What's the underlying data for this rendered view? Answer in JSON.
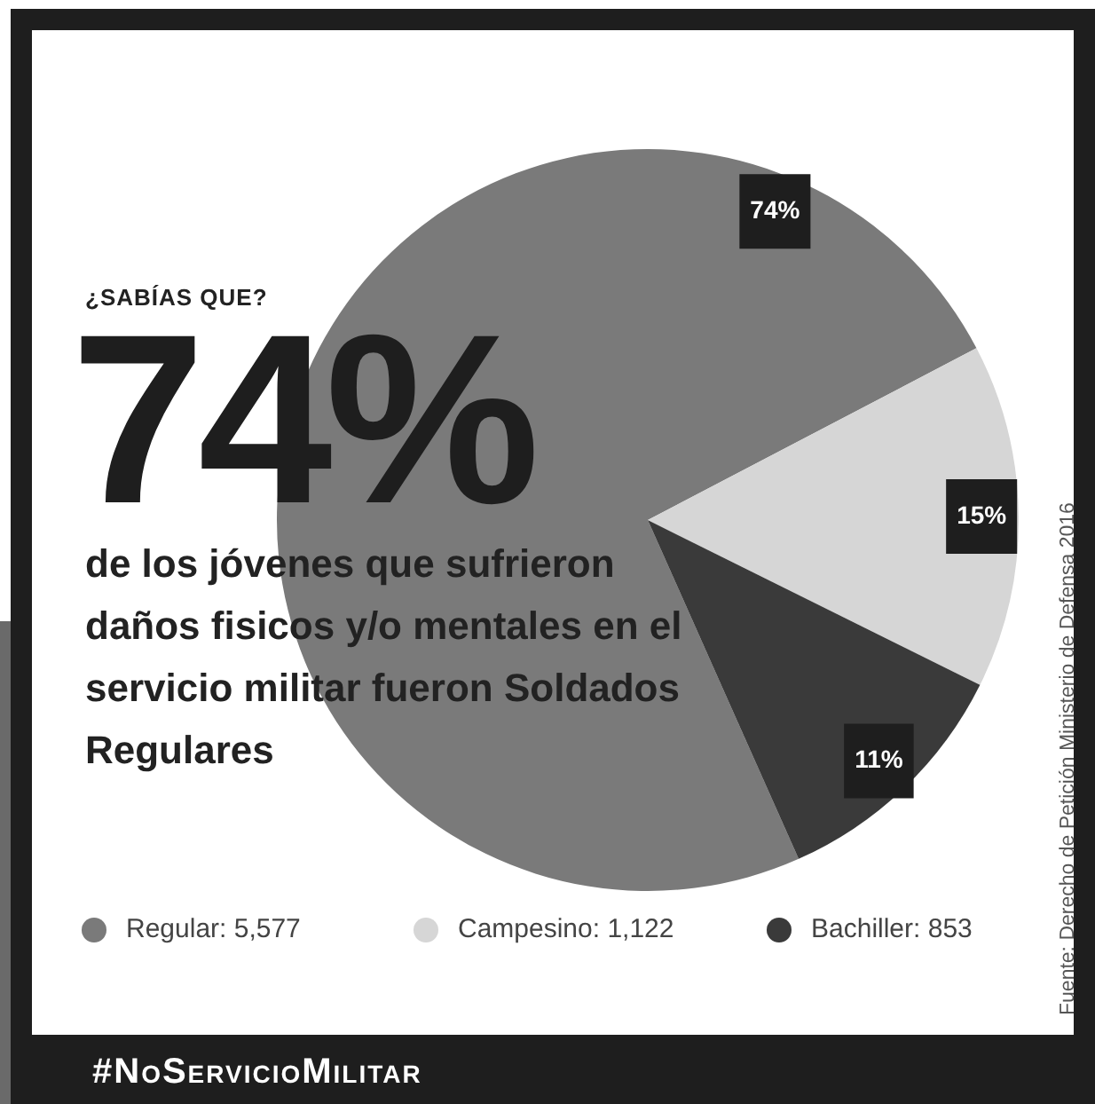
{
  "chart_data": {
    "type": "pie",
    "title": "74%",
    "subtitle": "¿SABÍAS QUE?",
    "categories": [
      "Regular: 5,577",
      "Campesino: 1,122",
      "Bachiller: 853"
    ],
    "values": [
      74,
      15,
      11
    ],
    "colors": [
      "#7a7a7a",
      "#d6d6d6",
      "#3a3a3a"
    ],
    "value_labels": [
      "74%",
      "15%",
      "11%"
    ],
    "legend": "bottom",
    "annotations": [
      "de los jóvenes que sufrieron daños fisicos y/o mentales en el servicio militar fueron Soldados Regulares",
      "Fuente: Derecho de Petición Ministerio de Defensa 2016",
      "#NoServicioMilitar"
    ]
  }
}
